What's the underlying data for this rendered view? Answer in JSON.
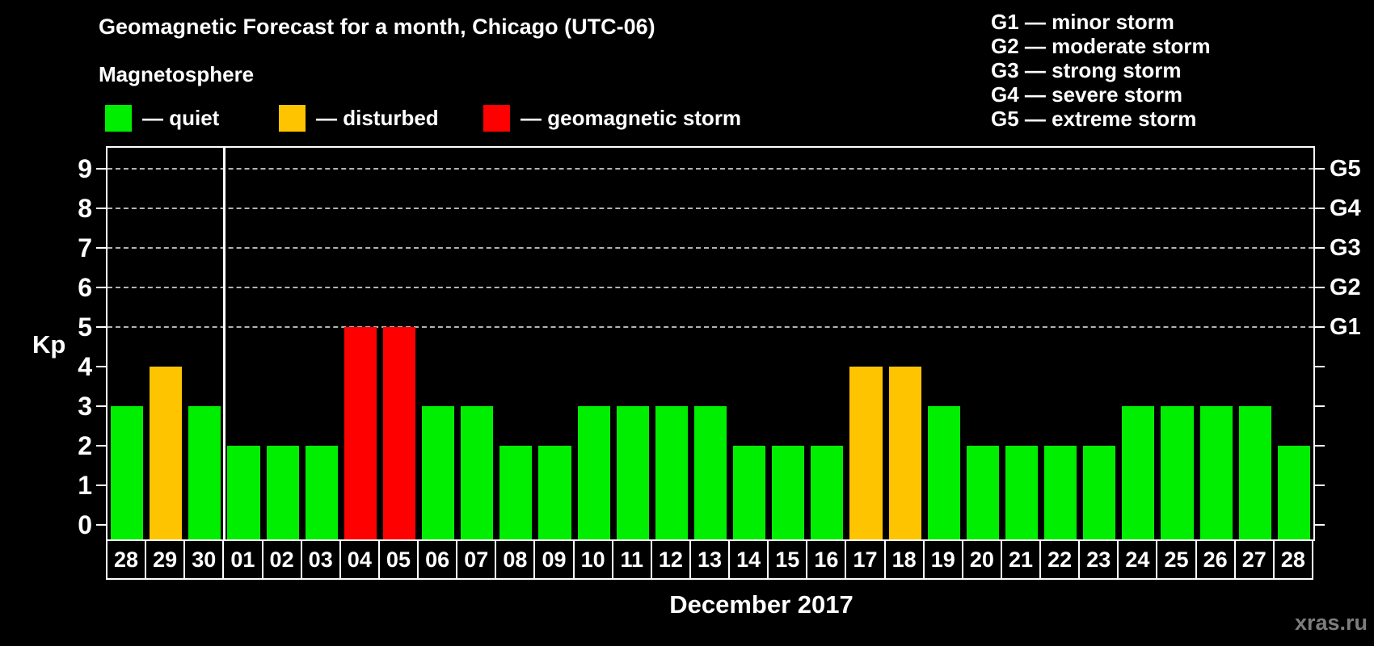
{
  "header": {
    "title": "Geomagnetic Forecast for a month, Chicago (UTC-06)",
    "subtitle": "Magnetosphere"
  },
  "legend": {
    "items": [
      {
        "status": "quiet",
        "label": "— quiet"
      },
      {
        "status": "disturbed",
        "label": "— disturbed"
      },
      {
        "status": "storm",
        "label": "— geomagnetic storm"
      }
    ]
  },
  "g_scale_legend": {
    "items": [
      "G1 — minor storm",
      "G2 — moderate storm",
      "G3 — strong storm",
      "G4 — severe storm",
      "G5 — extreme storm"
    ]
  },
  "chart_data": {
    "type": "bar",
    "title": "Geomagnetic Forecast for a month, Chicago (UTC-06)",
    "xlabel": "December 2017",
    "ylabel": "Kp",
    "ylim": [
      0,
      9
    ],
    "y_ticks": [
      0,
      1,
      2,
      3,
      4,
      5,
      6,
      7,
      8,
      9
    ],
    "gridlines_at": [
      5,
      6,
      7,
      8,
      9
    ],
    "grid_style": "dashed",
    "legend_position": "top",
    "right_axis_labels": [
      {
        "kp": 5,
        "label": "G1"
      },
      {
        "kp": 6,
        "label": "G2"
      },
      {
        "kp": 7,
        "label": "G3"
      },
      {
        "kp": 8,
        "label": "G4"
      },
      {
        "kp": 9,
        "label": "G5"
      }
    ],
    "categories": [
      "28",
      "29",
      "30",
      "01",
      "02",
      "03",
      "04",
      "05",
      "06",
      "07",
      "08",
      "09",
      "10",
      "11",
      "12",
      "13",
      "14",
      "15",
      "16",
      "17",
      "18",
      "19",
      "20",
      "21",
      "22",
      "23",
      "24",
      "25",
      "26",
      "27",
      "28"
    ],
    "values": [
      3,
      4,
      3,
      2,
      2,
      2,
      5,
      5,
      3,
      3,
      2,
      2,
      3,
      3,
      3,
      3,
      2,
      2,
      2,
      4,
      4,
      3,
      2,
      2,
      2,
      2,
      3,
      3,
      3,
      3,
      2
    ],
    "statuses": [
      "quiet",
      "disturbed",
      "quiet",
      "quiet",
      "quiet",
      "quiet",
      "storm",
      "storm",
      "quiet",
      "quiet",
      "quiet",
      "quiet",
      "quiet",
      "quiet",
      "quiet",
      "quiet",
      "quiet",
      "quiet",
      "quiet",
      "disturbed",
      "disturbed",
      "quiet",
      "quiet",
      "quiet",
      "quiet",
      "quiet",
      "quiet",
      "quiet",
      "quiet",
      "quiet",
      "quiet"
    ],
    "month_boundary_index": 3
  },
  "colors": {
    "quiet": "#00ee00",
    "disturbed": "#ffc400",
    "storm": "#ff0000",
    "background": "#000000",
    "text": "#ffffff",
    "gridline": "#b3b3b3",
    "watermark": "#7d7d7d"
  },
  "watermark": "xras.ru"
}
